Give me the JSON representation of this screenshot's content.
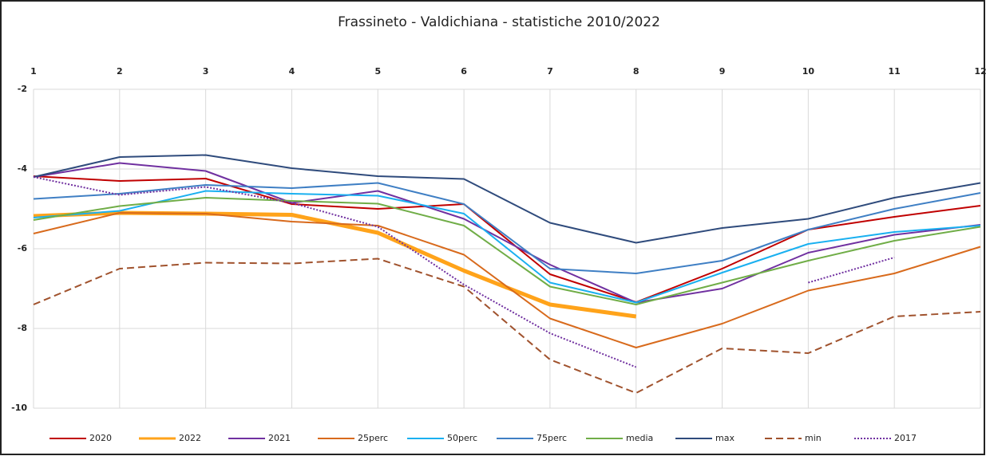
{
  "chart_data": {
    "type": "line",
    "title": "Frassineto - Valdichiana - statistiche 2010/2022",
    "x": [
      1,
      2,
      3,
      4,
      5,
      6,
      7,
      8,
      9,
      10,
      11,
      12
    ],
    "xlim": [
      1,
      12
    ],
    "xticks": [
      1,
      2,
      3,
      4,
      5,
      6,
      7,
      8,
      9,
      10,
      11,
      12
    ],
    "ylim": [
      -10,
      -2
    ],
    "yticks": [
      -10,
      -8,
      -6,
      -4,
      -2
    ],
    "grid": true,
    "legend": "bottom",
    "series": [
      {
        "name": "2020",
        "color": "#c00000",
        "width": 2,
        "style": "solid",
        "values": [
          -4.18,
          -4.3,
          -4.24,
          -4.88,
          -5.0,
          -4.88,
          -6.64,
          -7.34,
          -6.5,
          -5.52,
          -5.2,
          -4.92
        ]
      },
      {
        "name": "2022",
        "color": "#ffa31a",
        "width": 5,
        "style": "solid",
        "values": [
          -5.18,
          -5.1,
          -5.12,
          -5.15,
          -5.6,
          -6.55,
          -7.4,
          -7.7,
          null,
          null,
          null,
          null
        ]
      },
      {
        "name": "2021",
        "color": "#7030a0",
        "width": 2,
        "style": "solid",
        "values": [
          -4.2,
          -3.85,
          -4.05,
          -4.85,
          -4.55,
          -5.25,
          -6.4,
          -7.35,
          -7.0,
          -6.1,
          -5.65,
          -5.4
        ]
      },
      {
        "name": "25perc",
        "color": "#d86a1c",
        "width": 2,
        "style": "solid",
        "values": [
          -5.62,
          -5.1,
          -5.12,
          -5.32,
          -5.42,
          -6.15,
          -7.75,
          -8.48,
          -7.88,
          -7.05,
          -6.62,
          -5.95
        ]
      },
      {
        "name": "50perc",
        "color": "#1ab0f0",
        "width": 2,
        "style": "solid",
        "values": [
          -5.22,
          -5.05,
          -4.55,
          -4.62,
          -4.67,
          -5.12,
          -6.85,
          -7.35,
          -6.6,
          -5.88,
          -5.58,
          -5.42
        ]
      },
      {
        "name": "75perc",
        "color": "#3f7fc4",
        "width": 2,
        "style": "solid",
        "values": [
          -4.75,
          -4.62,
          -4.4,
          -4.48,
          -4.35,
          -4.88,
          -6.5,
          -6.62,
          -6.3,
          -5.52,
          -5.0,
          -4.6
        ]
      },
      {
        "name": "media",
        "color": "#70ad47",
        "width": 2,
        "style": "solid",
        "values": [
          -5.28,
          -4.93,
          -4.72,
          -4.8,
          -4.87,
          -5.42,
          -6.95,
          -7.4,
          -6.85,
          -6.3,
          -5.8,
          -5.45
        ]
      },
      {
        "name": "max",
        "color": "#2f4b7c",
        "width": 2,
        "style": "solid",
        "values": [
          -4.2,
          -3.7,
          -3.65,
          -3.98,
          -4.18,
          -4.25,
          -5.35,
          -5.85,
          -5.48,
          -5.25,
          -4.72,
          -4.35
        ]
      },
      {
        "name": "min",
        "color": "#a0522d",
        "width": 2,
        "style": "dashed",
        "values": [
          -7.4,
          -6.5,
          -6.35,
          -6.37,
          -6.25,
          -6.95,
          -8.78,
          -9.62,
          -8.5,
          -8.62,
          -7.7,
          -7.58
        ]
      },
      {
        "name": "2017",
        "color": "#7030a0",
        "width": 2,
        "style": "dotted",
        "values": [
          -4.2,
          -4.65,
          -4.45,
          -4.85,
          -5.45,
          -6.9,
          -8.12,
          -8.97,
          null,
          -6.85,
          -6.22,
          null
        ]
      }
    ]
  }
}
